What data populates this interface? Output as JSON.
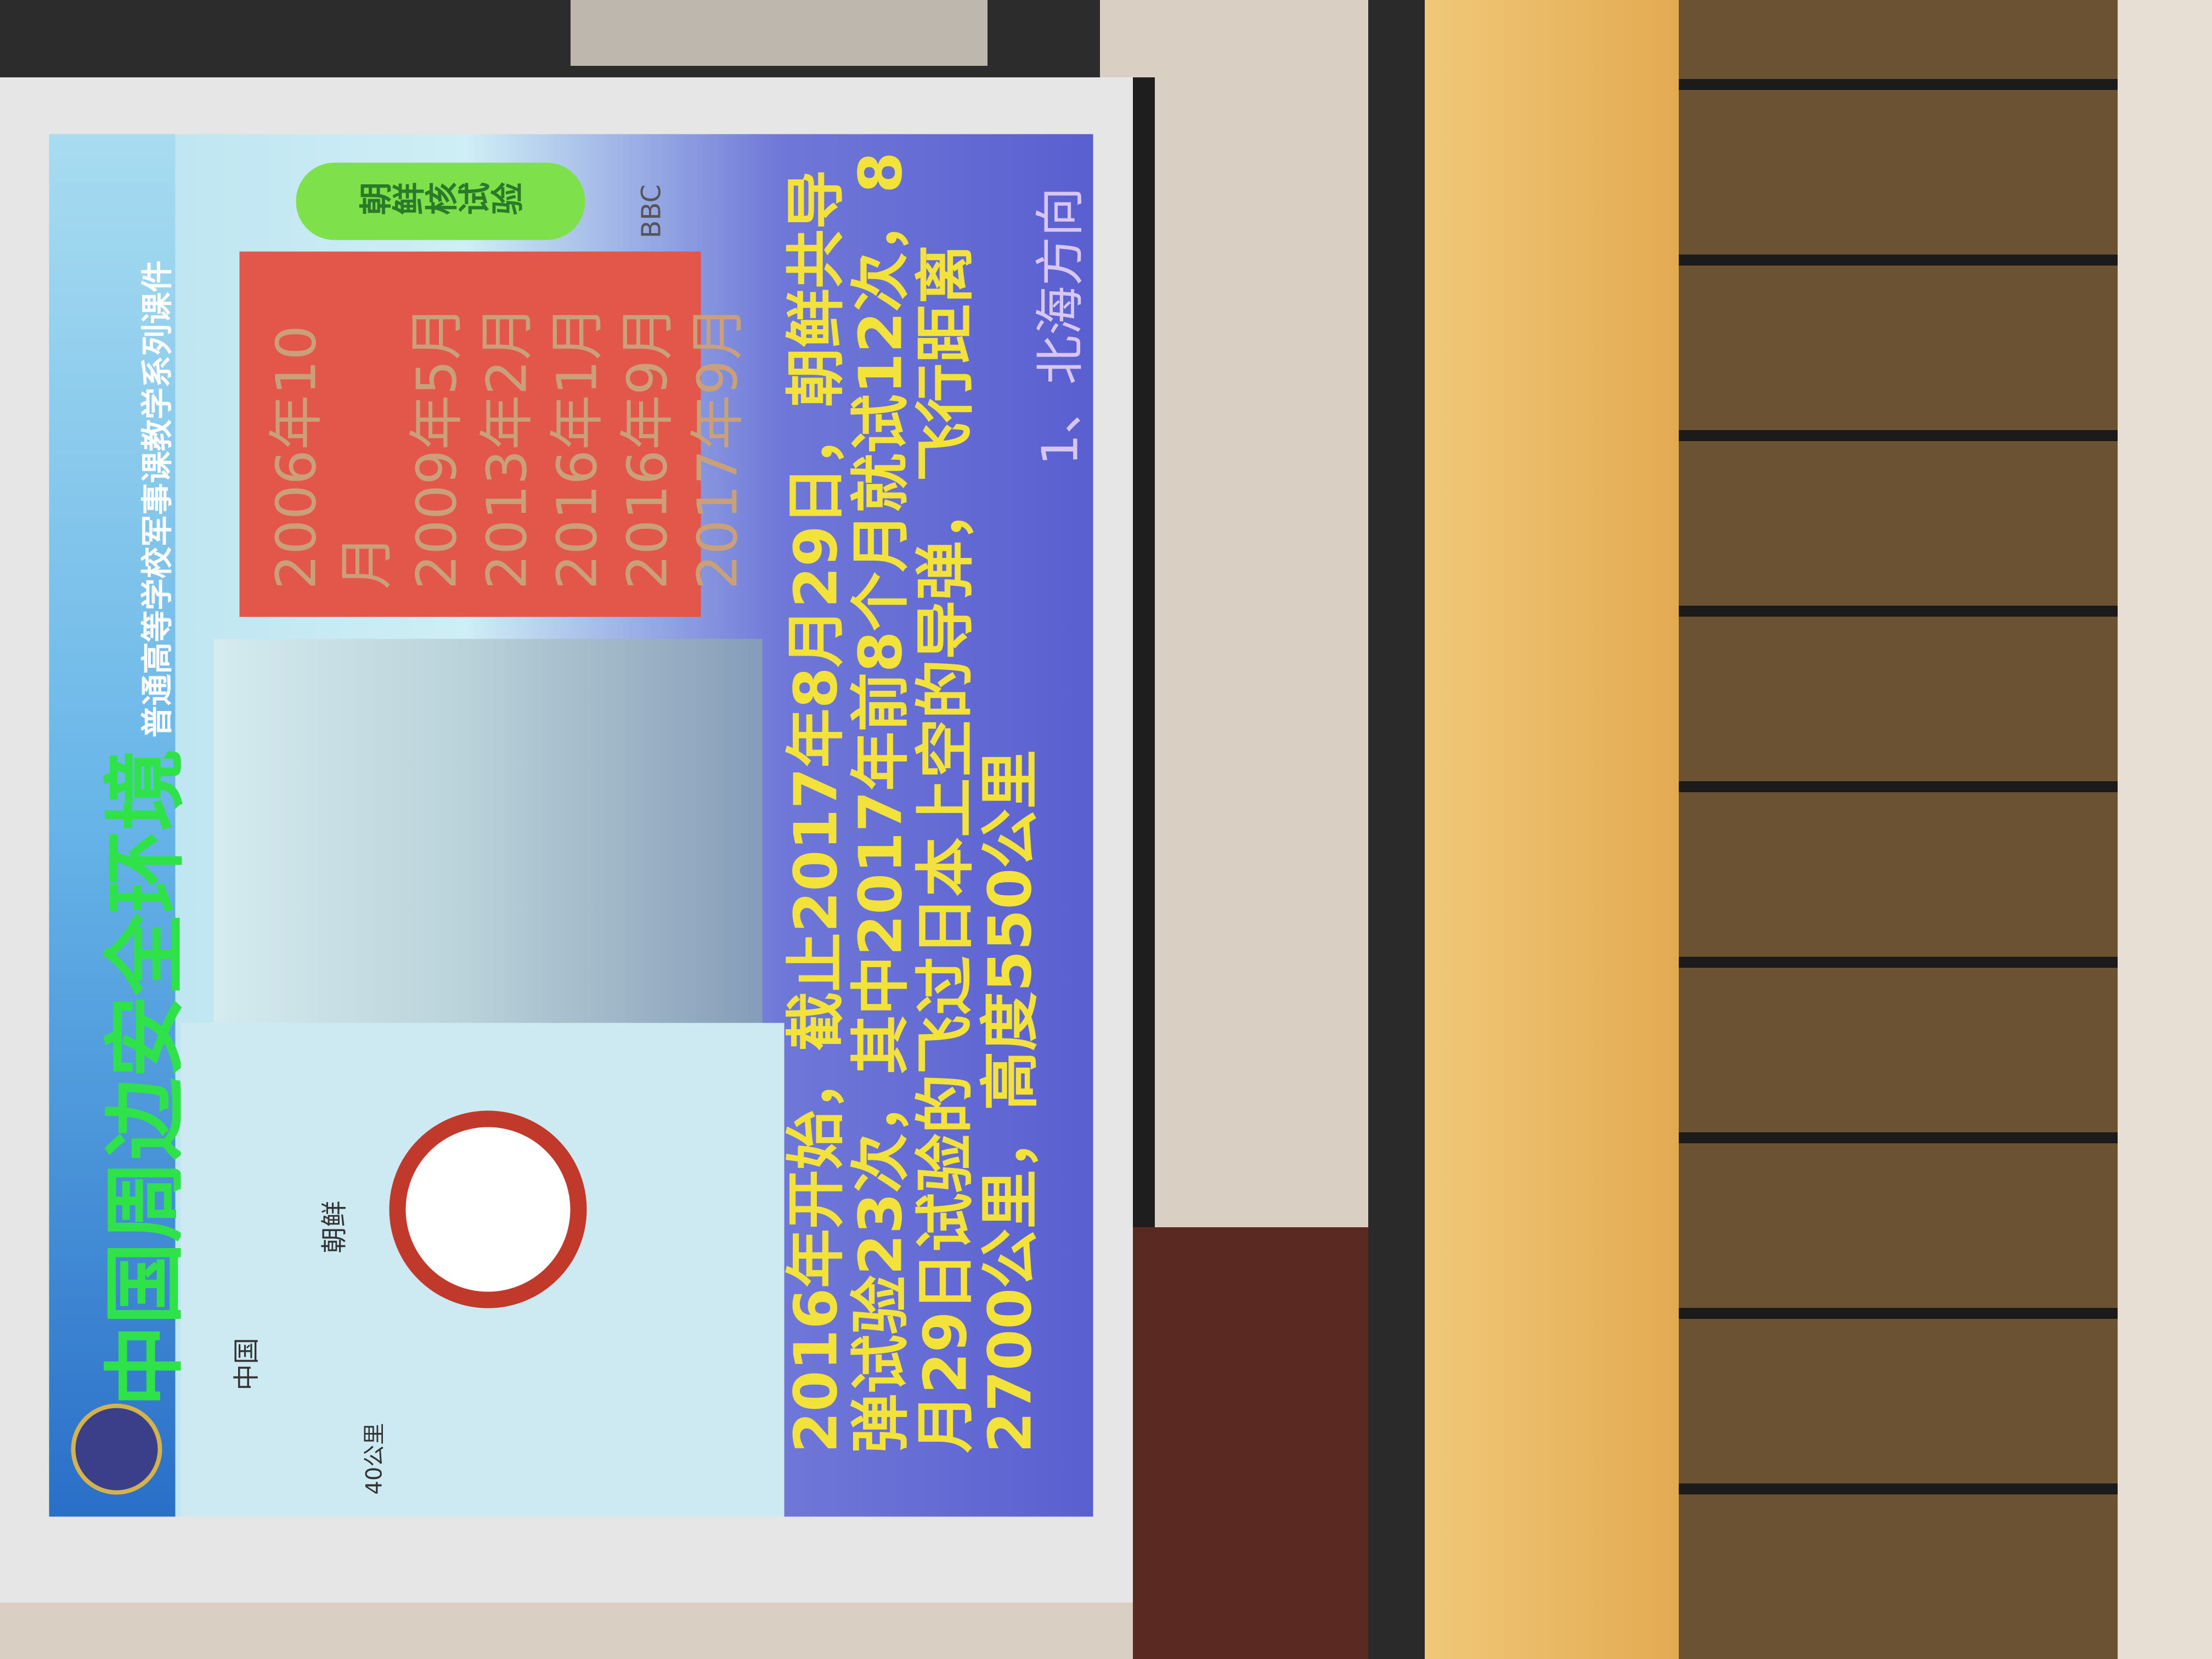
{
  "slide": {
    "title": "中国周边安全环境",
    "subtitle": "普通高等学校军事课教学系列课件",
    "badge": "朝鲜核试验",
    "dates": [
      "2006年10月",
      "2009年5月",
      "2013年2月",
      "2016年1月",
      "2016年9月",
      "2017年9月"
    ],
    "map_labels": [
      "中国",
      "朝鲜",
      "40公里"
    ],
    "watermark": "BBC",
    "body": "2016年开始，截止2017年8月29日，朝鲜共导弹试验23次，其中2017年前8个月就试12次，8月29日试验的飞过日本上空的导弹，飞行距离2700公里，高度550公里",
    "footer": "1、北海方向"
  }
}
